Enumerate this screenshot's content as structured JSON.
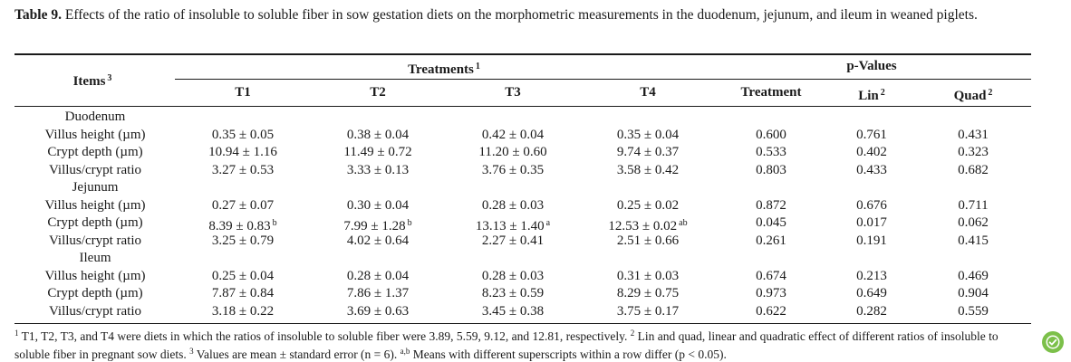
{
  "caption": {
    "label": "Table 9.",
    "text": "Effects of the ratio of insoluble to soluble fiber in sow gestation diets on the morphometric measurements in the duodenum, jejunum, and ileum in weaned piglets."
  },
  "header": {
    "items": "Items",
    "items_sup": "3",
    "treatments": "Treatments",
    "treatments_sup": "1",
    "pvalues": "p-Values",
    "cols": [
      "T1",
      "T2",
      "T3",
      "T4"
    ],
    "treatment": "Treatment",
    "lin": "Lin",
    "lin_sup": "2",
    "quad": "Quad",
    "quad_sup": "2"
  },
  "sections": [
    {
      "name": "Duodenum",
      "rows": [
        {
          "label": "Villus height (µm)",
          "t": [
            [
              "0.35 ± 0.05",
              ""
            ],
            [
              "0.38 ± 0.04",
              ""
            ],
            [
              "0.42 ± 0.04",
              ""
            ],
            [
              "0.35 ± 0.04",
              ""
            ]
          ],
          "p": [
            "0.600",
            "0.761",
            "0.431"
          ]
        },
        {
          "label": "Crypt depth (µm)",
          "t": [
            [
              "10.94 ± 1.16",
              ""
            ],
            [
              "11.49 ± 0.72",
              ""
            ],
            [
              "11.20 ± 0.60",
              ""
            ],
            [
              "9.74 ± 0.37",
              ""
            ]
          ],
          "p": [
            "0.533",
            "0.402",
            "0.323"
          ]
        },
        {
          "label": "Villus/crypt ratio",
          "t": [
            [
              "3.27 ± 0.53",
              ""
            ],
            [
              "3.33 ± 0.13",
              ""
            ],
            [
              "3.76 ± 0.35",
              ""
            ],
            [
              "3.58 ± 0.42",
              ""
            ]
          ],
          "p": [
            "0.803",
            "0.433",
            "0.682"
          ]
        }
      ]
    },
    {
      "name": "Jejunum",
      "rows": [
        {
          "label": "Villus height (µm)",
          "t": [
            [
              "0.27 ± 0.07",
              ""
            ],
            [
              "0.30 ± 0.04",
              ""
            ],
            [
              "0.28 ± 0.03",
              ""
            ],
            [
              "0.25 ± 0.02",
              ""
            ]
          ],
          "p": [
            "0.872",
            "0.676",
            "0.711"
          ]
        },
        {
          "label": "Crypt depth (µm)",
          "t": [
            [
              "8.39 ± 0.83",
              "b"
            ],
            [
              "7.99 ± 1.28",
              "b"
            ],
            [
              "13.13 ± 1.40",
              "a"
            ],
            [
              "12.53 ± 0.02",
              "ab"
            ]
          ],
          "p": [
            "0.045",
            "0.017",
            "0.062"
          ]
        },
        {
          "label": "Villus/crypt ratio",
          "t": [
            [
              "3.25 ± 0.79",
              ""
            ],
            [
              "4.02 ± 0.64",
              ""
            ],
            [
              "2.27 ± 0.41",
              ""
            ],
            [
              "2.51 ± 0.66",
              ""
            ]
          ],
          "p": [
            "0.261",
            "0.191",
            "0.415"
          ]
        }
      ]
    },
    {
      "name": "Ileum",
      "rows": [
        {
          "label": "Villus height (µm)",
          "t": [
            [
              "0.25 ± 0.04",
              ""
            ],
            [
              "0.28 ± 0.04",
              ""
            ],
            [
              "0.28 ± 0.03",
              ""
            ],
            [
              "0.31 ± 0.03",
              ""
            ]
          ],
          "p": [
            "0.674",
            "0.213",
            "0.469"
          ]
        },
        {
          "label": "Crypt depth (µm)",
          "t": [
            [
              "7.87 ± 0.84",
              ""
            ],
            [
              "7.86 ± 1.37",
              ""
            ],
            [
              "8.23 ± 0.59",
              ""
            ],
            [
              "8.29 ± 0.75",
              ""
            ]
          ],
          "p": [
            "0.973",
            "0.649",
            "0.904"
          ]
        },
        {
          "label": "Villus/crypt ratio",
          "t": [
            [
              "3.18 ± 0.22",
              ""
            ],
            [
              "3.69 ± 0.63",
              ""
            ],
            [
              "3.45 ± 0.38",
              ""
            ],
            [
              "3.75 ± 0.17",
              ""
            ]
          ],
          "p": [
            "0.622",
            "0.282",
            "0.559"
          ]
        }
      ]
    }
  ],
  "footnote": {
    "s1": "1",
    "t1": "T1, T2, T3, and T4 were diets in which the ratios of insoluble to soluble fiber were 3.89, 5.59, 9.12, and 12.81, respectively.",
    "s2": "2",
    "t2": "Lin and quad, linear and quadratic effect of different ratios of insoluble to soluble fiber in pregnant sow diets.",
    "s3": "3",
    "t3": "Values are mean ± standard error (n = 6).",
    "s4": "a,b",
    "t4": "Means with different superscripts within a row differ (p < 0.05)."
  },
  "badge": {
    "icon": "check-badge-icon",
    "color": "#7cc04a"
  }
}
